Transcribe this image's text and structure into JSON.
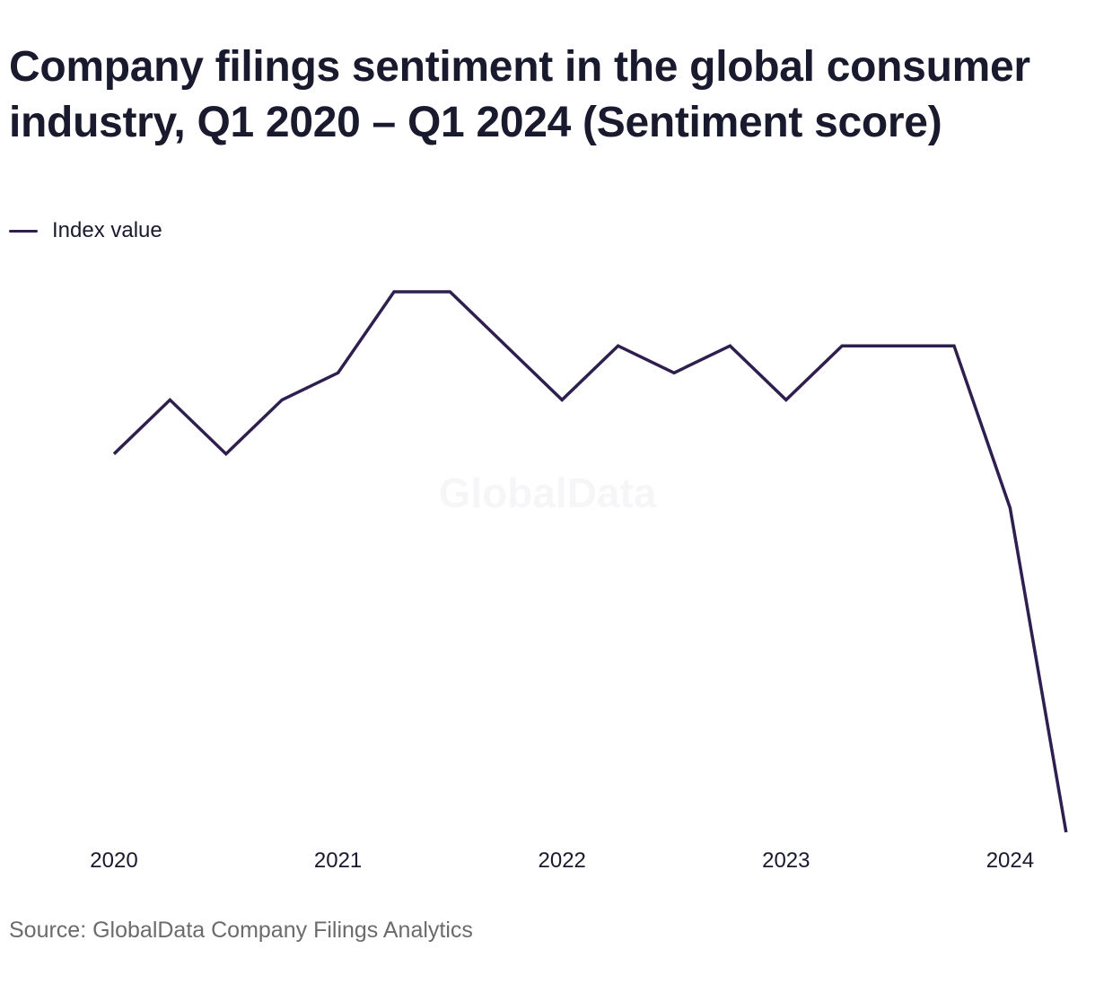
{
  "chart_data": {
    "type": "line",
    "title": "Company filings sentiment in the global consumer industry, Q1 2020 – Q1 2024 (Sentiment score)",
    "x": [
      "Q1 2020",
      "Q2 2020",
      "Q3 2020",
      "Q4 2020",
      "Q1 2021",
      "Q2 2021",
      "Q3 2021",
      "Q4 2021",
      "Q1 2022",
      "Q2 2022",
      "Q3 2022",
      "Q4 2022",
      "Q1 2023",
      "Q2 2023",
      "Q3 2023",
      "Q4 2023",
      "Q1 2024",
      "Q2 2024"
    ],
    "series": [
      {
        "name": "Index value",
        "color": "#2e1f4f",
        "values": [
          0.2,
          0.22,
          0.2,
          0.22,
          0.23,
          0.26,
          0.26,
          0.24,
          0.22,
          0.24,
          0.23,
          0.24,
          0.22,
          0.24,
          0.24,
          0.24,
          0.18,
          0.06
        ]
      }
    ],
    "x_tick_labels": [
      {
        "index": 0,
        "label": "2020"
      },
      {
        "index": 4,
        "label": "2021"
      },
      {
        "index": 8,
        "label": "2022"
      },
      {
        "index": 12,
        "label": "2023"
      },
      {
        "index": 16,
        "label": "2024"
      }
    ],
    "xlabel": "",
    "ylabel": "",
    "ylim": [
      0.06,
      0.26
    ],
    "grid": false,
    "legend": "top-left"
  },
  "watermark": "GlobalData",
  "source": "Source: GlobalData Company Filings Analytics"
}
